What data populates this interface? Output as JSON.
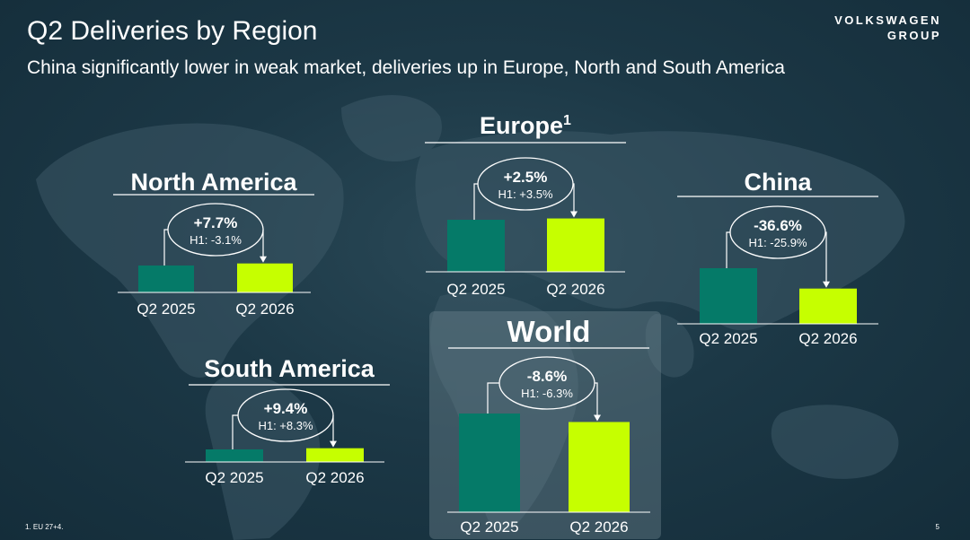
{
  "header": {
    "title": "Q2 Deliveries by Region",
    "subtitle": "China significantly lower in weak market, deliveries up in Europe, North and South America"
  },
  "logo": {
    "line1": "VOLKSWAGEN",
    "line2": "GROUP"
  },
  "footer": {
    "footnote": "1. EU 27+4.",
    "page_number": "5"
  },
  "colors": {
    "q2_2025": "#057a68",
    "q2_2026": "#c6ff00",
    "background": "#163140"
  },
  "chart_data": [
    {
      "type": "bar",
      "title": "North America",
      "categories": [
        "Q2 2025",
        "Q2 2026"
      ],
      "values": [
        1.0,
        1.077
      ],
      "change": "+7.7%",
      "h1": "H1: -3.1%"
    },
    {
      "type": "bar",
      "title": "Europe",
      "title_sup": "1",
      "categories": [
        "Q2 2025",
        "Q2 2026"
      ],
      "values": [
        1.0,
        1.025
      ],
      "change": "+2.5%",
      "h1": "H1: +3.5%"
    },
    {
      "type": "bar",
      "title": "China",
      "categories": [
        "Q2 2025",
        "Q2 2026"
      ],
      "values": [
        1.0,
        0.634
      ],
      "change": "-36.6%",
      "h1": "H1: -25.9%"
    },
    {
      "type": "bar",
      "title": "South America",
      "categories": [
        "Q2 2025",
        "Q2 2026"
      ],
      "values": [
        1.0,
        1.094
      ],
      "change": "+9.4%",
      "h1": "H1: +8.3%"
    },
    {
      "type": "bar",
      "title": "World",
      "categories": [
        "Q2 2025",
        "Q2 2026"
      ],
      "values": [
        1.0,
        0.914
      ],
      "change": "-8.6%",
      "h1": "H1: -6.3%"
    }
  ]
}
